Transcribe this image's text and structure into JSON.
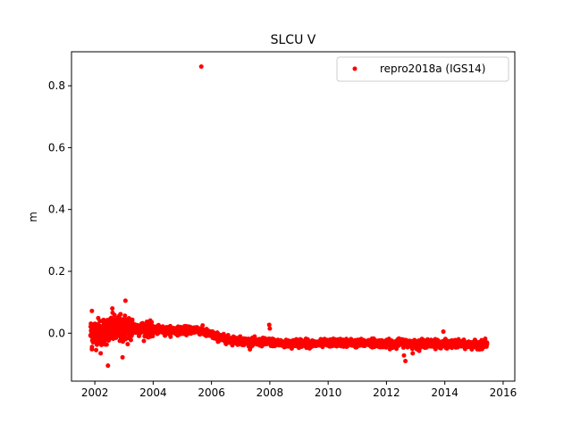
{
  "chart_data": {
    "type": "scatter",
    "title": "SLCU V",
    "xlabel": "",
    "ylabel": "m",
    "xlim": [
      2001.2,
      2016.4
    ],
    "ylim": [
      -0.155,
      0.91
    ],
    "x_ticks": [
      2002,
      2004,
      2006,
      2008,
      2010,
      2012,
      2014,
      2016
    ],
    "x_tick_labels": [
      "2002",
      "2004",
      "2006",
      "2008",
      "2010",
      "2012",
      "2014",
      "2016"
    ],
    "y_ticks": [
      0.0,
      0.2,
      0.4,
      0.6,
      0.8
    ],
    "y_tick_labels": [
      "0.0",
      "0.2",
      "0.4",
      "0.6",
      "0.8"
    ],
    "grid": false,
    "legend_position": "top-right",
    "series": [
      {
        "name": "repro2018a (IGS14)",
        "color": "#ff0000",
        "marker": "circle",
        "x_range": [
          2001.85,
          2015.45
        ],
        "trend": [
          [
            2001.85,
            0.0
          ],
          [
            2002.5,
            0.01
          ],
          [
            2003.0,
            0.015
          ],
          [
            2003.5,
            0.015
          ],
          [
            2004.0,
            0.01
          ],
          [
            2005.0,
            0.008
          ],
          [
            2005.5,
            0.012
          ],
          [
            2006.0,
            -0.005
          ],
          [
            2006.5,
            -0.02
          ],
          [
            2007.0,
            -0.025
          ],
          [
            2007.5,
            -0.03
          ],
          [
            2008.0,
            -0.028
          ],
          [
            2008.5,
            -0.035
          ],
          [
            2009.0,
            -0.03
          ],
          [
            2009.5,
            -0.035
          ],
          [
            2010.0,
            -0.032
          ],
          [
            2010.5,
            -0.03
          ],
          [
            2011.0,
            -0.033
          ],
          [
            2011.5,
            -0.03
          ],
          [
            2012.0,
            -0.035
          ],
          [
            2012.5,
            -0.03
          ],
          [
            2013.0,
            -0.035
          ],
          [
            2013.5,
            -0.033
          ],
          [
            2014.0,
            -0.035
          ],
          [
            2014.5,
            -0.036
          ],
          [
            2015.0,
            -0.038
          ],
          [
            2015.45,
            -0.035
          ]
        ],
        "outliers": [
          {
            "x": 2005.65,
            "y": 0.862
          },
          {
            "x": 2003.05,
            "y": 0.105
          },
          {
            "x": 2001.9,
            "y": 0.072
          },
          {
            "x": 2002.6,
            "y": 0.08
          },
          {
            "x": 2002.45,
            "y": -0.105
          },
          {
            "x": 2002.95,
            "y": -0.078
          },
          {
            "x": 2001.9,
            "y": -0.052
          },
          {
            "x": 2002.2,
            "y": -0.065
          },
          {
            "x": 2007.98,
            "y": 0.027
          },
          {
            "x": 2008.0,
            "y": 0.015
          },
          {
            "x": 2012.6,
            "y": -0.072
          },
          {
            "x": 2012.65,
            "y": -0.09
          },
          {
            "x": 2012.9,
            "y": -0.065
          },
          {
            "x": 2013.95,
            "y": 0.005
          }
        ]
      }
    ]
  }
}
